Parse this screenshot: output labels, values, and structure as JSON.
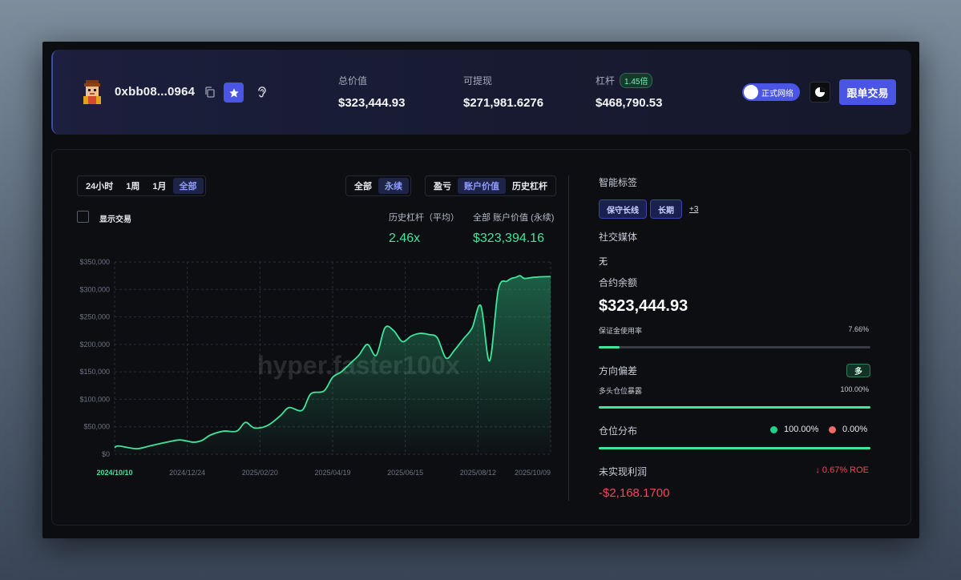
{
  "header": {
    "address": "0xbb08...0964",
    "stats": [
      {
        "label": "总价值",
        "value": "$323,444.93"
      },
      {
        "label": "可提现",
        "value": "$271,981.6276"
      },
      {
        "label": "杠杆",
        "badge": "1.45倍",
        "value": "$468,790.53"
      }
    ],
    "network_toggle": "正式网络",
    "follow_button": "跟单交易"
  },
  "controls": {
    "time_ranges": [
      "24小时",
      "1周",
      "1月",
      "全部"
    ],
    "time_active": "全部",
    "market_types": [
      "全部",
      "永续"
    ],
    "market_active": "永续",
    "metrics": [
      "盈亏",
      "账户价值",
      "历史杠杆"
    ],
    "metric_active": "账户价值",
    "show_trades_label": "显示交易"
  },
  "summary": {
    "avg_leverage_label": "历史杠杆（平均）",
    "avg_leverage_value": "2.46x",
    "account_value_label": "全部 账户价值 (永续)",
    "account_value_value": "$323,394.16"
  },
  "chart_data": {
    "type": "area",
    "watermark": "hyper.faster100x",
    "y_ticks": [
      "$350,000",
      "$300,000",
      "$250,000",
      "$200,000",
      "$150,000",
      "$100,000",
      "$50,000",
      "$0"
    ],
    "ylim": [
      0,
      350000
    ],
    "x_ticks": [
      "2024/10/10",
      "2024/12/24",
      "2025/02/20",
      "2025/04/19",
      "2025/06/15",
      "2025/08/12",
      "2025/10/09"
    ],
    "x": [
      0,
      0.01,
      0.05,
      0.08,
      0.12,
      0.15,
      0.18,
      0.2,
      0.22,
      0.25,
      0.28,
      0.3,
      0.32,
      0.35,
      0.38,
      0.4,
      0.43,
      0.45,
      0.48,
      0.5,
      0.52,
      0.54,
      0.56,
      0.58,
      0.6,
      0.62,
      0.64,
      0.66,
      0.68,
      0.7,
      0.72,
      0.74,
      0.76,
      0.78,
      0.8,
      0.82,
      0.84,
      0.86,
      0.88,
      0.9,
      0.91,
      0.92,
      0.93,
      0.94,
      0.96,
      0.98,
      1.0
    ],
    "values": [
      12000,
      15000,
      10000,
      15000,
      22000,
      26000,
      22000,
      25000,
      35000,
      42000,
      42000,
      58000,
      48000,
      52000,
      70000,
      85000,
      80000,
      110000,
      115000,
      140000,
      150000,
      165000,
      180000,
      200000,
      180000,
      230000,
      225000,
      205000,
      215000,
      220000,
      218000,
      212000,
      175000,
      190000,
      210000,
      230000,
      270000,
      170000,
      300000,
      315000,
      320000,
      322000,
      325000,
      320000,
      322000,
      323000,
      323394
    ],
    "color": "#3ee59c"
  },
  "right": {
    "smart_tags_title": "智能标签",
    "tags": [
      "保守长线",
      "长期"
    ],
    "more_tags": "+3",
    "social_title": "社交媒体",
    "social_value": "无",
    "balance_title": "合约余额",
    "balance_value": "$323,444.93",
    "margin_label": "保证金使用率",
    "margin_value": "7.66%",
    "margin_fraction": 0.0766,
    "direction_title": "方向偏差",
    "direction_badge": "多",
    "long_exposure_label": "多头仓位暴露",
    "long_exposure_value": "100.00%",
    "long_exposure_fraction": 1.0,
    "distribution_title": "仓位分布",
    "dist_long": "100.00%",
    "dist_short": "0.00%",
    "dist_long_fraction": 1.0,
    "pnl_title": "未实现利润",
    "roe": "↓ 0.67% ROE",
    "pnl_value": "-$2,168.1700",
    "accent_green": "#3ee59c",
    "accent_red": "#f2465b"
  }
}
